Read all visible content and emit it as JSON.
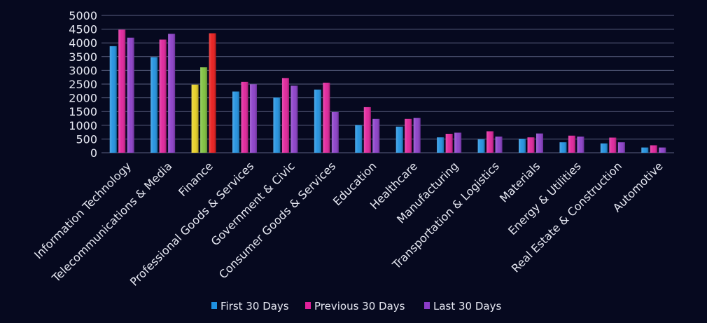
{
  "chart_data": {
    "type": "bar",
    "categories": [
      "Information Technology",
      "Telecommunications & Media",
      "Finance",
      "Professional Goods & Services",
      "Government & Civic",
      "Consumer Goods &  Services",
      "Education",
      "Healthcare",
      "Manufacturing",
      "Transportation & Logistics",
      "Materials",
      "Energy & Utilities",
      "Real Estate & Construction",
      "Automotive"
    ],
    "series": [
      {
        "name": "First 30 Days",
        "color": "#1e90e0",
        "values": [
          3880,
          3480,
          2480,
          2230,
          2010,
          2300,
          1010,
          950,
          560,
          490,
          510,
          380,
          340,
          190
        ]
      },
      {
        "name": "Previous 30 Days",
        "color": "#e0209a",
        "values": [
          4480,
          4120,
          3110,
          2580,
          2720,
          2550,
          1660,
          1230,
          690,
          780,
          560,
          620,
          550,
          270
        ]
      },
      {
        "name": "Last 30 Days",
        "color": "#8a3cc8",
        "values": [
          4190,
          4330,
          4350,
          2490,
          2440,
          1480,
          1230,
          1270,
          730,
          590,
          700,
          590,
          380,
          190
        ]
      }
    ],
    "point_colors": {
      "2": [
        "#e8d020",
        "#7cbf3a",
        "#e81818"
      ]
    },
    "yticks": [
      0,
      500,
      1000,
      1500,
      2000,
      2500,
      3000,
      3500,
      4000,
      4500,
      5000
    ],
    "ylim": [
      0,
      5000
    ],
    "grid": true,
    "legend_position": "bottom",
    "title": "",
    "xlabel": "",
    "ylabel": ""
  }
}
